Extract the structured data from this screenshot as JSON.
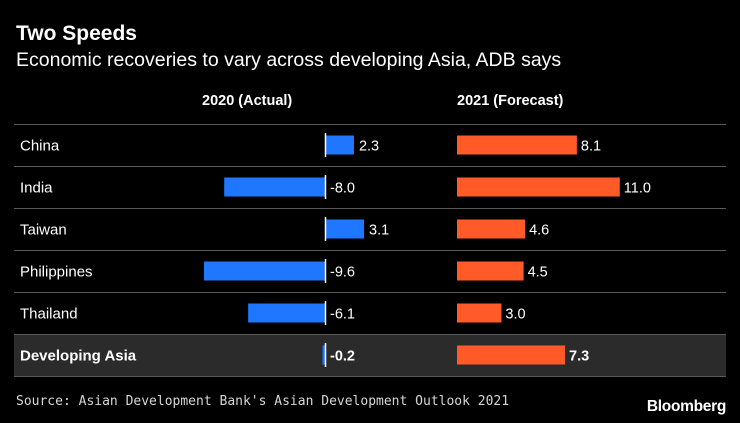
{
  "title": "Two Speeds",
  "subtitle": "Economic recoveries to vary across developing Asia, ADB says",
  "source": "Source: Asian Development Bank's Asian Development Outlook 2021",
  "brand": "Bloomberg",
  "colors": {
    "actual": "#1f77ff",
    "forecast": "#ff5a28",
    "highlight_row": "#2b2b2b",
    "rule": "#5a5a5a",
    "background": "#000000"
  },
  "chart_data": {
    "type": "bar",
    "orientation": "horizontal",
    "title": "Two Speeds",
    "subtitle": "Economic recoveries to vary across developing Asia, ADB says",
    "categories": [
      "China",
      "India",
      "Taiwan",
      "Philippines",
      "Thailand",
      "Developing Asia"
    ],
    "highlight_category": "Developing Asia",
    "series": [
      {
        "name": "2020 (Actual)",
        "values": [
          2.3,
          -8.0,
          3.1,
          -9.6,
          -6.1,
          -0.2
        ],
        "labels": [
          "2.3",
          "-8.0",
          "3.1",
          "-9.6",
          "-6.1",
          "-0.2"
        ]
      },
      {
        "name": "2021 (Forecast)",
        "values": [
          8.1,
          11.0,
          4.6,
          4.5,
          3.0,
          7.3
        ],
        "labels": [
          "8.1",
          "11.0",
          "4.6",
          "4.5",
          "3.0",
          "7.3"
        ]
      }
    ],
    "xlabel": "",
    "ylabel": "",
    "grid": false,
    "legend": "column headers"
  }
}
